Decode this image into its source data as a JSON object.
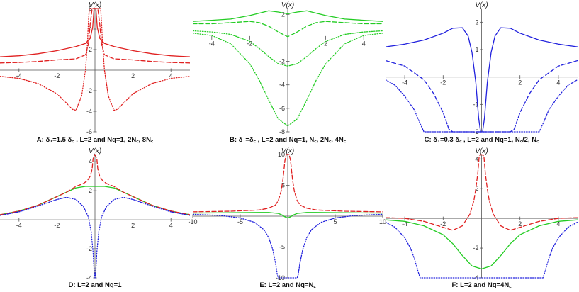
{
  "chart_data": [
    {
      "type": "line",
      "caption": "A: δ₁=1.5 δ꜀ , L=2 and Nq=1, 2N꜀, 8N꜀",
      "ylabel": "V(x)",
      "xlim": [
        -5,
        5
      ],
      "ylim": [
        -6,
        6
      ],
      "xticks": [
        "-4",
        "-2",
        "2",
        "4"
      ],
      "yticks": [
        "-6",
        "-4",
        "-2",
        "2",
        "4",
        "6"
      ],
      "series": [
        {
          "color": "#e02020",
          "dash": "solid",
          "x": [
            -5,
            -4,
            -3,
            -2,
            -1,
            -0.5,
            -0.25,
            -0.12,
            -0.05,
            0,
            0.05,
            0.12,
            0.25,
            0.5,
            1,
            2,
            3,
            4,
            5
          ],
          "y": [
            1.3,
            1.4,
            1.6,
            1.9,
            2.3,
            2.6,
            3.1,
            4.2,
            6,
            6,
            6,
            4.2,
            3.1,
            2.6,
            2.3,
            1.9,
            1.6,
            1.4,
            1.3
          ]
        },
        {
          "color": "#e02020",
          "dash": "dashed",
          "x": [
            -5,
            -4,
            -3,
            -2,
            -1,
            -0.5,
            -0.35,
            -0.25,
            -0.15,
            0,
            0.15,
            0.25,
            0.35,
            0.5,
            1,
            2,
            3,
            4,
            5
          ],
          "y": [
            0.7,
            0.75,
            0.85,
            1.0,
            1.1,
            1.5,
            2.5,
            4.5,
            6,
            6,
            6,
            4.5,
            2.5,
            1.5,
            1.1,
            1.0,
            0.85,
            0.75,
            0.7
          ]
        },
        {
          "color": "#e02020",
          "dash": "dotted",
          "x": [
            -5,
            -4,
            -3,
            -2,
            -1.5,
            -1.2,
            -1,
            -0.7,
            -0.5,
            -0.4,
            -0.35,
            -0.3,
            0,
            0.3,
            0.35,
            0.4,
            0.5,
            0.7,
            1,
            1.2,
            1.5,
            2,
            3,
            4,
            5
          ],
          "y": [
            -0.6,
            -0.8,
            -1.3,
            -2.3,
            -3.2,
            -3.8,
            -3.9,
            -2.5,
            0,
            2.5,
            4.5,
            6,
            6,
            6,
            4.5,
            2.5,
            0,
            -2.5,
            -3.9,
            -3.8,
            -3.2,
            -2.3,
            -1.3,
            -0.8,
            -0.6
          ]
        }
      ]
    },
    {
      "type": "line",
      "caption": "B: δ₁=δ꜀ , L=2 and Nq=1, N꜀, 2N꜀, 4N꜀",
      "ylabel": "V(x)",
      "xlim": [
        -5,
        5
      ],
      "ylim": [
        -8,
        2.5
      ],
      "xticks": [
        "-4",
        "-2",
        "2",
        "4"
      ],
      "yticks": [
        "-8",
        "-6",
        "-4",
        "-2",
        "2"
      ],
      "series": [
        {
          "color": "#22cc22",
          "dash": "solid",
          "x": [
            -5,
            -4,
            -3,
            -2,
            -1.5,
            -1,
            -0.5,
            0,
            0.5,
            1,
            1.5,
            2,
            3,
            4,
            5
          ],
          "y": [
            1.4,
            1.5,
            1.6,
            1.9,
            2.1,
            2.3,
            2.2,
            2.05,
            2.2,
            2.3,
            2.1,
            1.9,
            1.6,
            1.5,
            1.4
          ]
        },
        {
          "color": "#22cc22",
          "dash": "dashed",
          "x": [
            -5,
            -4,
            -3,
            -2,
            -1.5,
            -1,
            -0.5,
            0,
            0.5,
            1,
            1.5,
            2,
            3,
            4,
            5
          ],
          "y": [
            1.2,
            1.2,
            1.3,
            1.4,
            1.3,
            1.0,
            0.5,
            0.1,
            0.5,
            1.0,
            1.3,
            1.4,
            1.3,
            1.2,
            1.2
          ]
        },
        {
          "color": "#22cc22",
          "dash": "dotted",
          "x": [
            -5,
            -4,
            -3,
            -2,
            -1.5,
            -1,
            -0.5,
            0,
            0.5,
            1,
            1.5,
            2,
            3,
            4,
            5
          ],
          "y": [
            0.6,
            0.5,
            0.3,
            -0.3,
            -0.9,
            -1.6,
            -2.2,
            -2.4,
            -2.2,
            -1.6,
            -0.9,
            -0.3,
            0.3,
            0.5,
            0.6
          ]
        },
        {
          "color": "#22cc22",
          "dash": "dotted",
          "x": [
            -5,
            -4,
            -3,
            -2,
            -1.5,
            -1,
            -0.5,
            0,
            0.5,
            1,
            1.5,
            2,
            3,
            4,
            5
          ],
          "y": [
            0.4,
            0.2,
            -0.5,
            -2.2,
            -3.6,
            -5.3,
            -6.9,
            -7.5,
            -6.9,
            -5.3,
            -3.6,
            -2.2,
            -0.5,
            0.2,
            0.4
          ]
        }
      ]
    },
    {
      "type": "line",
      "caption": "C: δ₁=0.3 δ꜀ , L=2 and Nq=1, N꜀/2, N꜀",
      "ylabel": "V(x)",
      "xlim": [
        -5,
        5
      ],
      "ylim": [
        -2,
        2.5
      ],
      "xticks": [
        "-4",
        "-2",
        "2",
        "4"
      ],
      "yticks": [
        "-2",
        "-1",
        "1",
        "2"
      ],
      "series": [
        {
          "color": "#2020dd",
          "dash": "solid",
          "x": [
            -5,
            -4,
            -3,
            -2,
            -1.5,
            -1,
            -0.7,
            -0.5,
            -0.3,
            -0.15,
            -0.05,
            0,
            0.05,
            0.15,
            0.3,
            0.5,
            0.7,
            1,
            1.5,
            2,
            3,
            4,
            5
          ],
          "y": [
            1.1,
            1.2,
            1.35,
            1.6,
            1.78,
            1.8,
            1.5,
            0.9,
            -0.2,
            -1.5,
            -2,
            -2,
            -2,
            -1.5,
            -0.2,
            0.9,
            1.5,
            1.8,
            1.78,
            1.6,
            1.35,
            1.2,
            1.1
          ]
        },
        {
          "color": "#2020dd",
          "dash": "dashed",
          "x": [
            -5,
            -4,
            -3,
            -2.5,
            -2,
            -1.7,
            -1.5,
            1.5,
            1.7,
            2,
            2.5,
            3,
            4,
            5
          ],
          "y": [
            0.6,
            0.4,
            -0.1,
            -0.6,
            -1.3,
            -1.9,
            -2,
            -2,
            -1.9,
            -1.3,
            -0.6,
            -0.1,
            0.4,
            0.6
          ]
        },
        {
          "color": "#2020dd",
          "dash": "dotted",
          "x": [
            -5,
            -4.5,
            -4,
            -3.5,
            -3.2,
            -3.0,
            3.0,
            3.2,
            3.5,
            4,
            4.5,
            5
          ],
          "y": [
            -0.1,
            -0.3,
            -0.7,
            -1.2,
            -1.7,
            -2,
            -2,
            -1.7,
            -1.2,
            -0.7,
            -0.3,
            -0.1
          ]
        }
      ]
    },
    {
      "type": "line",
      "caption": "D: L=2 and Nq=1",
      "ylabel": "V(x)",
      "xlim": [
        -5,
        5
      ],
      "ylim": [
        -4,
        4.5
      ],
      "xticks": [
        "-4",
        "-2",
        "2",
        "4"
      ],
      "yticks": [
        "-4",
        "-2",
        "2",
        "4"
      ],
      "series": [
        {
          "color": "#22cc22",
          "dash": "solid",
          "x": [
            -5,
            -4,
            -3,
            -2,
            -1.5,
            -1,
            -0.5,
            0,
            0.5,
            1,
            1.5,
            2,
            3,
            4,
            5
          ],
          "y": [
            0.35,
            0.6,
            1.0,
            1.6,
            1.9,
            2.2,
            2.3,
            2.3,
            2.3,
            2.2,
            1.9,
            1.6,
            1.0,
            0.6,
            0.35
          ]
        },
        {
          "color": "#e02020",
          "dash": "dashed",
          "x": [
            -5,
            -4,
            -3,
            -2,
            -1.5,
            -1,
            -0.6,
            -0.4,
            -0.25,
            -0.15,
            -0.1,
            0,
            0.1,
            0.15,
            0.25,
            0.4,
            0.6,
            1,
            1.5,
            2,
            3,
            4,
            5
          ],
          "y": [
            0.35,
            0.6,
            1.0,
            1.6,
            1.9,
            2.3,
            2.5,
            2.7,
            3.0,
            3.5,
            4.2,
            4.5,
            4.2,
            3.5,
            3.0,
            2.7,
            2.5,
            2.3,
            1.9,
            1.6,
            1.0,
            0.6,
            0.35
          ]
        },
        {
          "color": "#2020dd",
          "dash": "dotted",
          "x": [
            -5,
            -4,
            -3,
            -2,
            -1.5,
            -1,
            -0.6,
            -0.35,
            -0.2,
            -0.1,
            -0.04,
            0,
            0.04,
            0.1,
            0.2,
            0.35,
            0.6,
            1,
            1.5,
            2,
            3,
            4,
            5
          ],
          "y": [
            0.3,
            0.55,
            0.95,
            1.4,
            1.55,
            1.4,
            0.9,
            0.2,
            -0.8,
            -2.2,
            -3.6,
            -4,
            -3.6,
            -2.2,
            -0.8,
            0.2,
            0.9,
            1.4,
            1.55,
            1.4,
            0.95,
            0.55,
            0.3
          ]
        }
      ]
    },
    {
      "type": "line",
      "caption": "E: L=2 and Nq=N꜀",
      "ylabel": "V(x)",
      "xlim": [
        -10,
        10
      ],
      "ylim": [
        -10,
        10
      ],
      "xticks": [
        "-10",
        "-5",
        "5",
        "10"
      ],
      "yticks": [
        "-10",
        "-5",
        "5",
        "10"
      ],
      "series": [
        {
          "color": "#22cc22",
          "dash": "solid",
          "x": [
            -10,
            -6,
            -3,
            -2,
            -1,
            -0.6,
            -0.3,
            0,
            0.3,
            0.6,
            1,
            2,
            3,
            6,
            10
          ],
          "y": [
            0.5,
            0.55,
            0.6,
            0.6,
            0.45,
            0.2,
            -0.1,
            -0.3,
            -0.1,
            0.2,
            0.45,
            0.6,
            0.6,
            0.55,
            0.5
          ]
        },
        {
          "color": "#e02020",
          "dash": "dashed",
          "x": [
            -10,
            -6,
            -3,
            -2,
            -1.3,
            -1,
            -0.7,
            -0.5,
            -0.3,
            -0.15,
            0,
            0.15,
            0.3,
            0.5,
            0.7,
            1,
            1.3,
            2,
            3,
            6,
            10
          ],
          "y": [
            0.7,
            0.8,
            1.0,
            1.3,
            1.8,
            2.5,
            4.0,
            6.0,
            9.0,
            10,
            10,
            10,
            9.0,
            6.0,
            4.0,
            2.5,
            1.8,
            1.3,
            1.0,
            0.8,
            0.7
          ]
        },
        {
          "color": "#2020dd",
          "dash": "dotted",
          "x": [
            -10,
            -7,
            -5,
            -3.5,
            -2.5,
            -2,
            -1.6,
            -1.3,
            -1.1,
            -1.0,
            1.0,
            1.1,
            1.3,
            1.6,
            2,
            2.5,
            3.5,
            5,
            7,
            10
          ],
          "y": [
            0.3,
            0.1,
            -0.3,
            -1.0,
            -2.2,
            -3.5,
            -5.3,
            -7.5,
            -9.5,
            -10,
            -10,
            -9.5,
            -7.5,
            -5.3,
            -3.5,
            -2.2,
            -1.0,
            -0.3,
            0.1,
            0.3
          ]
        }
      ]
    },
    {
      "type": "line",
      "caption": "F: L=2 and Nq=4N꜀",
      "ylabel": "V(x)",
      "xlim": [
        -5,
        5
      ],
      "ylim": [
        -4,
        4.3
      ],
      "xticks": [
        "-4",
        "-2",
        "2",
        "4"
      ],
      "yticks": [
        "-4",
        "-2",
        "2",
        "4"
      ],
      "series": [
        {
          "color": "#22cc22",
          "dash": "solid",
          "x": [
            -5,
            -4,
            -3,
            -2,
            -1.5,
            -1,
            -0.5,
            0,
            0.5,
            1,
            1.5,
            2,
            3,
            4,
            5
          ],
          "y": [
            -0.1,
            -0.2,
            -0.5,
            -1.1,
            -1.7,
            -2.5,
            -3.2,
            -3.4,
            -3.2,
            -2.5,
            -1.7,
            -1.1,
            -0.5,
            -0.2,
            -0.1
          ]
        },
        {
          "color": "#e02020",
          "dash": "dashed",
          "x": [
            -5,
            -4,
            -3,
            -2,
            -1.5,
            -1,
            -0.6,
            -0.4,
            -0.3,
            -0.2,
            -0.12,
            0,
            0.12,
            0.2,
            0.3,
            0.4,
            0.6,
            1,
            1.5,
            2,
            3,
            4,
            5
          ],
          "y": [
            0.05,
            0.0,
            -0.2,
            -0.6,
            -0.8,
            -0.5,
            0.3,
            1.2,
            2.0,
            3.0,
            4.2,
            4.3,
            4.2,
            3.0,
            2.0,
            1.2,
            0.3,
            -0.5,
            -0.8,
            -0.6,
            -0.2,
            0.0,
            0.05
          ]
        },
        {
          "color": "#2020dd",
          "dash": "dotted",
          "x": [
            -5,
            -4.5,
            -4,
            -3.7,
            -3.5,
            -3.3,
            -3.2,
            3.2,
            3.3,
            3.5,
            3.7,
            4,
            4.5,
            5
          ],
          "y": [
            -0.25,
            -0.6,
            -1.3,
            -2.0,
            -2.7,
            -3.6,
            -4,
            -4,
            -3.6,
            -2.7,
            -2.0,
            -1.3,
            -0.6,
            -0.25
          ]
        }
      ]
    }
  ]
}
